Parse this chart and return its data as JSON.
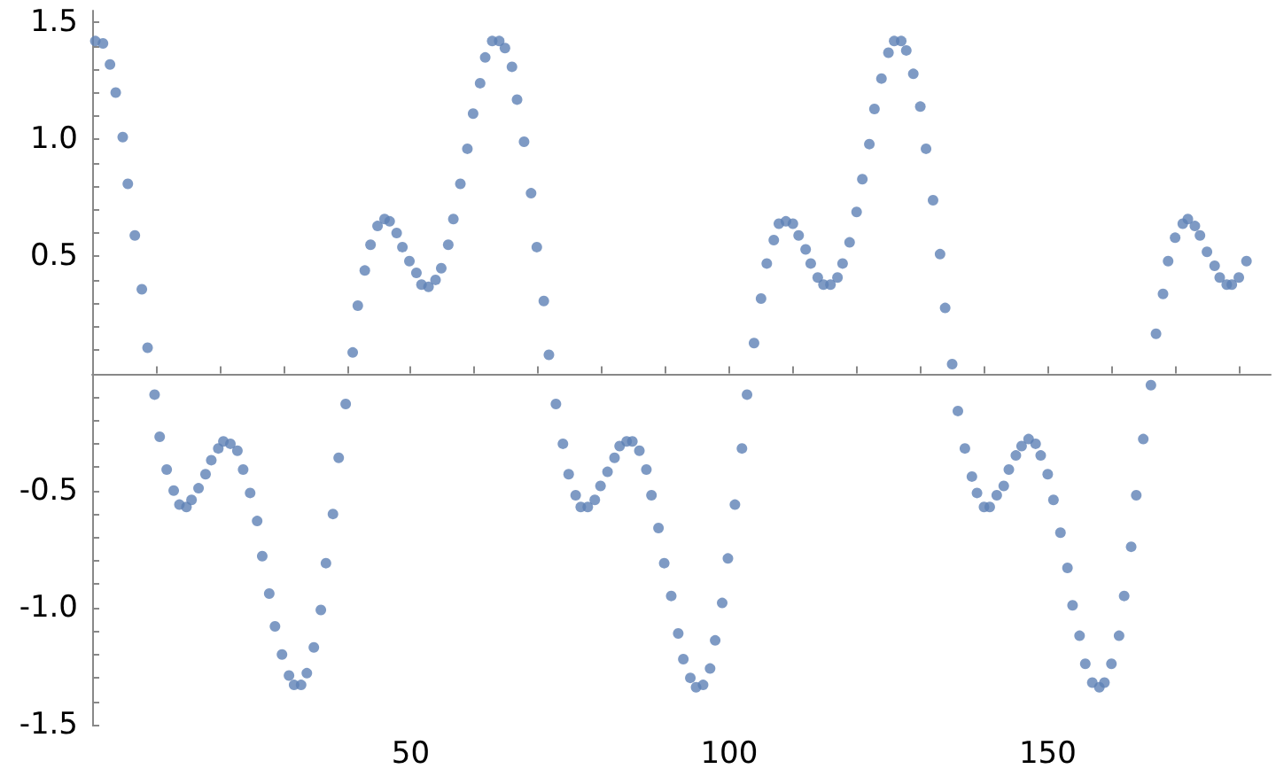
{
  "chart_data": {
    "type": "scatter",
    "marker": "circle",
    "xlim": [
      0,
      185
    ],
    "ylim": [
      -1.5,
      1.55
    ],
    "xticks": [
      {
        "value": 10,
        "label": null
      },
      {
        "value": 20,
        "label": null
      },
      {
        "value": 30,
        "label": null
      },
      {
        "value": 40,
        "label": null
      },
      50,
      {
        "value": 60,
        "label": null
      },
      {
        "value": 70,
        "label": null
      },
      {
        "value": 80,
        "label": null
      },
      {
        "value": 90,
        "label": null
      },
      100,
      {
        "value": 110,
        "label": null
      },
      {
        "value": 120,
        "label": null
      },
      {
        "value": 130,
        "label": null
      },
      {
        "value": 140,
        "label": null
      },
      150,
      {
        "value": 160,
        "label": null
      },
      {
        "value": 170,
        "label": null
      },
      {
        "value": 180,
        "label": null
      }
    ],
    "yticks": [
      {
        "value": -1.5,
        "label": "-1.5"
      },
      {
        "value": -1.4,
        "label": null
      },
      {
        "value": -1.3,
        "label": null
      },
      {
        "value": -1.2,
        "label": null
      },
      {
        "value": -1.1,
        "label": null
      },
      {
        "value": -1,
        "label": "-1.0"
      },
      {
        "value": -0.9,
        "label": null
      },
      {
        "value": -0.8,
        "label": null
      },
      {
        "value": -0.7,
        "label": null
      },
      {
        "value": -0.6,
        "label": null
      },
      {
        "value": -0.5,
        "label": "-0.5"
      },
      {
        "value": -0.4,
        "label": null
      },
      {
        "value": -0.3,
        "label": null
      },
      {
        "value": -0.2,
        "label": null
      },
      {
        "value": -0.1,
        "label": null
      },
      {
        "value": 0.1,
        "label": null
      },
      {
        "value": 0.2,
        "label": null
      },
      {
        "value": 0.3,
        "label": null
      },
      {
        "value": 0.4,
        "label": null
      },
      {
        "value": 0.5,
        "label": "0.5"
      },
      {
        "value": 0.6,
        "label": null
      },
      {
        "value": 0.7,
        "label": null
      },
      {
        "value": 0.8,
        "label": null
      },
      {
        "value": 0.9,
        "label": null
      },
      {
        "value": 1,
        "label": "1.0"
      },
      {
        "value": 1.1,
        "label": null
      },
      {
        "value": 1.2,
        "label": null
      },
      {
        "value": 1.3,
        "label": null
      },
      {
        "value": 1.4,
        "label": null
      },
      {
        "value": 1.5,
        "label": "1.5"
      }
    ],
    "series": [
      {
        "color": "#5e81b5",
        "x": [
          0.5,
          1.7,
          2.8,
          3.7,
          4.8,
          5.6,
          6.7,
          7.8,
          8.7,
          9.8,
          10.6,
          11.7,
          12.8,
          13.7,
          14.8,
          15.6,
          16.7,
          17.8,
          18.7,
          19.8,
          20.6,
          21.7,
          22.8,
          23.7,
          24.8,
          25.9,
          26.7,
          27.8,
          28.7,
          29.8,
          30.9,
          31.7,
          32.8,
          33.7,
          34.8,
          35.9,
          36.7,
          37.8,
          38.7,
          39.8,
          40.9,
          41.7,
          42.8,
          43.7,
          44.8,
          45.9,
          46.7,
          47.8,
          48.7,
          49.8,
          50.9,
          51.7,
          52.8,
          53.9,
          54.8,
          55.9,
          56.7,
          57.8,
          58.9,
          59.8,
          60.9,
          61.7,
          62.8,
          63.9,
          64.8,
          65.9,
          66.7,
          67.8,
          68.9,
          69.8,
          70.9,
          71.7,
          72.8,
          73.9,
          74.8,
          75.9,
          76.7,
          77.8,
          78.9,
          79.8,
          80.9,
          82.0,
          82.8,
          83.9,
          84.8,
          85.9,
          87.0,
          87.8,
          88.9,
          89.8,
          90.9,
          92.0,
          92.8,
          93.9,
          94.8,
          95.9,
          97.0,
          97.8,
          98.9,
          99.8,
          100.9,
          102.0,
          102.8,
          103.9,
          105.0,
          105.9,
          107.0,
          107.8,
          108.9,
          110.0,
          110.9,
          112.0,
          112.8,
          113.9,
          114.8,
          115.9,
          117.0,
          117.8,
          118.9,
          120.0,
          120.9,
          122.0,
          122.8,
          123.9,
          125.0,
          125.9,
          127.0,
          127.8,
          128.9,
          130.0,
          130.9,
          132.0,
          133.1,
          133.9,
          135.0,
          135.9,
          137.0,
          138.1,
          138.9,
          140.0,
          140.9,
          142.0,
          143.1,
          143.9,
          145.0,
          145.9,
          147.0,
          148.1,
          148.9,
          150.0,
          150.9,
          152.0,
          153.1,
          153.9,
          155.0,
          155.9,
          157.0,
          158.1,
          158.9,
          160.0,
          161.2,
          162.0,
          163.1,
          163.9,
          165.0,
          166.2,
          167.0,
          168.1,
          168.9,
          170.0,
          171.2,
          172.0,
          173.1,
          173.9,
          175.0,
          176.2,
          177.0,
          178.1,
          178.9,
          180.0,
          181.2
        ],
        "values": [
          1.42,
          1.41,
          1.32,
          1.2,
          1.01,
          0.81,
          0.59,
          0.36,
          0.11,
          -0.09,
          -0.27,
          -0.41,
          -0.5,
          -0.56,
          -0.57,
          -0.54,
          -0.49,
          -0.43,
          -0.37,
          -0.32,
          -0.29,
          -0.3,
          -0.33,
          -0.41,
          -0.51,
          -0.63,
          -0.78,
          -0.94,
          -1.08,
          -1.2,
          -1.29,
          -1.33,
          -1.33,
          -1.28,
          -1.17,
          -1.01,
          -0.81,
          -0.6,
          -0.36,
          -0.13,
          0.09,
          0.29,
          0.44,
          0.55,
          0.63,
          0.66,
          0.65,
          0.6,
          0.54,
          0.48,
          0.43,
          0.38,
          0.37,
          0.4,
          0.45,
          0.55,
          0.66,
          0.81,
          0.96,
          1.11,
          1.24,
          1.35,
          1.42,
          1.42,
          1.39,
          1.31,
          1.17,
          0.99,
          0.77,
          0.54,
          0.31,
          0.08,
          -0.13,
          -0.3,
          -0.43,
          -0.52,
          -0.57,
          -0.57,
          -0.54,
          -0.48,
          -0.42,
          -0.36,
          -0.31,
          -0.29,
          -0.29,
          -0.33,
          -0.41,
          -0.52,
          -0.66,
          -0.81,
          -0.95,
          -1.11,
          -1.22,
          -1.3,
          -1.34,
          -1.33,
          -1.26,
          -1.14,
          -0.98,
          -0.79,
          -0.56,
          -0.32,
          -0.09,
          0.13,
          0.32,
          0.47,
          0.57,
          0.64,
          0.65,
          0.64,
          0.59,
          0.53,
          0.47,
          0.41,
          0.38,
          0.38,
          0.41,
          0.47,
          0.56,
          0.69,
          0.83,
          0.98,
          1.13,
          1.26,
          1.37,
          1.42,
          1.42,
          1.38,
          1.28,
          1.14,
          0.96,
          0.74,
          0.51,
          0.28,
          0.04,
          -0.16,
          -0.32,
          -0.44,
          -0.51,
          -0.57,
          -0.57,
          -0.52,
          -0.48,
          -0.41,
          -0.35,
          -0.31,
          -0.28,
          -0.3,
          -0.35,
          -0.43,
          -0.54,
          -0.68,
          -0.83,
          -0.99,
          -1.12,
          -1.24,
          -1.32,
          -1.34,
          -1.32,
          -1.24,
          -1.12,
          -0.95,
          -0.74,
          -0.52,
          -0.28,
          -0.05,
          0.17,
          0.34,
          0.48,
          0.58,
          0.64,
          0.66,
          0.63,
          0.59,
          0.52,
          0.46,
          0.41,
          0.38,
          0.38,
          0.41,
          0.48
        ]
      }
    ]
  }
}
